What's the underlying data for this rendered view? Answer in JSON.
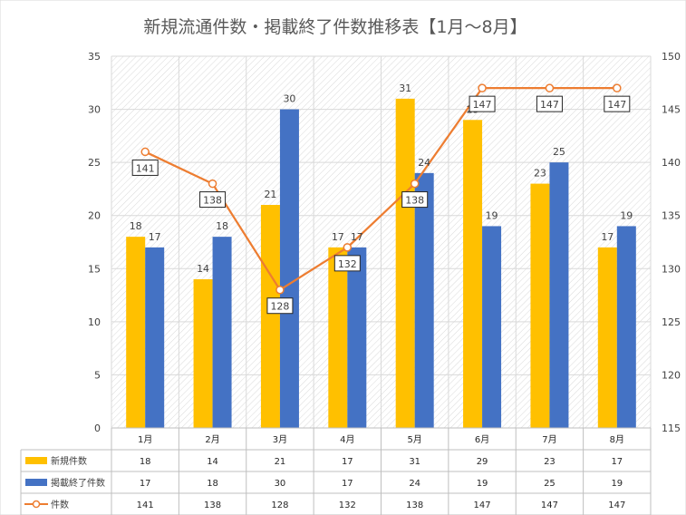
{
  "chart_data": {
    "type": "bar",
    "title": "新規流通件数・掲載終了件数推移表【1月～8月】",
    "categories": [
      "1月",
      "2月",
      "3月",
      "4月",
      "5月",
      "6月",
      "7月",
      "8月"
    ],
    "series": [
      {
        "name": "新規件数",
        "type": "bar",
        "axis": "left",
        "color": "#FFC000",
        "values": [
          18,
          14,
          21,
          17,
          31,
          29,
          23,
          17
        ]
      },
      {
        "name": "掲載終了件数",
        "type": "bar",
        "axis": "left",
        "color": "#4472C4",
        "values": [
          17,
          18,
          30,
          17,
          24,
          19,
          25,
          19
        ]
      },
      {
        "name": "件数",
        "type": "line",
        "axis": "right",
        "color": "#ED7D31",
        "values": [
          141,
          138,
          128,
          132,
          138,
          147,
          147,
          147
        ]
      }
    ],
    "y_left": {
      "min": 0,
      "max": 35,
      "step": 5,
      "ticks": [
        "0",
        "5",
        "10",
        "15",
        "20",
        "25",
        "30",
        "35"
      ]
    },
    "y_right": {
      "min": 115,
      "max": 150,
      "step": 5,
      "ticks": [
        "115",
        "120",
        "125",
        "130",
        "135",
        "140",
        "145",
        "150"
      ]
    },
    "data_table": true,
    "grid": true,
    "legend_placement": "data-table-left"
  }
}
